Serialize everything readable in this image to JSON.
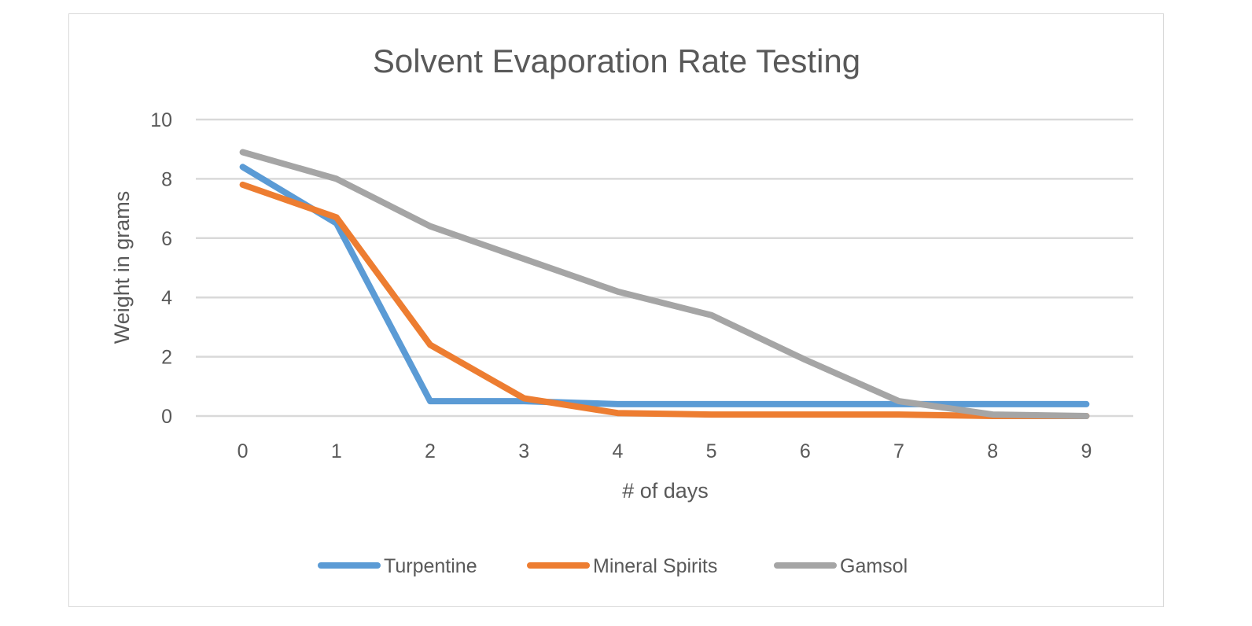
{
  "chart_data": {
    "type": "line",
    "title": "Solvent Evaporation Rate Testing",
    "xlabel": "# of days",
    "ylabel": "Weight in grams",
    "x": [
      0,
      1,
      2,
      3,
      4,
      5,
      6,
      7,
      8,
      9
    ],
    "xticks": [
      "0",
      "1",
      "2",
      "3",
      "4",
      "5",
      "6",
      "7",
      "8",
      "9"
    ],
    "ylim": [
      0,
      10
    ],
    "yticks": [
      "0",
      "2",
      "4",
      "6",
      "8",
      "10"
    ],
    "grid": true,
    "legend_position": "bottom",
    "series": [
      {
        "name": "Turpentine",
        "color": "#5b9bd5",
        "values": [
          8.4,
          6.5,
          0.5,
          0.5,
          0.4,
          0.4,
          0.4,
          0.4,
          0.4,
          0.4
        ]
      },
      {
        "name": "Mineral Spirits",
        "color": "#ed7d31",
        "values": [
          7.8,
          6.7,
          2.4,
          0.6,
          0.1,
          0.05,
          0.05,
          0.05,
          0.0,
          0.0
        ]
      },
      {
        "name": "Gamsol",
        "color": "#a5a5a5",
        "values": [
          8.9,
          8.0,
          6.4,
          5.3,
          4.2,
          3.4,
          1.9,
          0.5,
          0.05,
          0.0
        ]
      }
    ]
  }
}
